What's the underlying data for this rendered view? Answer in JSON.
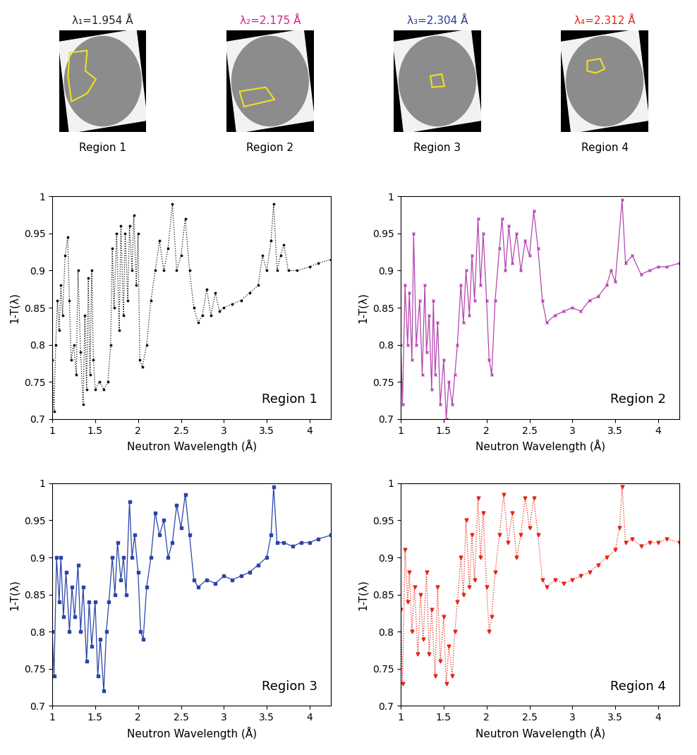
{
  "images": [
    {
      "title": "λ₁=1.954 Å",
      "color": "#222222",
      "caption": "Region 1"
    },
    {
      "title": "λ₂=2.175 Å",
      "color": "#d0208a",
      "caption": "Region 2"
    },
    {
      "title": "λ₃=2.304 Å",
      "color": "#2a3a9a",
      "caption": "Region 3"
    },
    {
      "title": "λ₄=2.312 Å",
      "color": "#e02a1a",
      "caption": "Region 4"
    }
  ],
  "chart_data": [
    {
      "type": "line",
      "x_label": "Neutron Wavelength (Å)",
      "y_label": "1-T(λ)",
      "annotations": [
        "Region 1"
      ],
      "xlim": [
        1,
        4.25
      ],
      "xticks": [
        1,
        1.5,
        2,
        2.5,
        3,
        3.5,
        4
      ],
      "ylim": [
        0.7,
        1
      ],
      "yticks": [
        0.7,
        0.75,
        0.8,
        0.85,
        0.9,
        0.95,
        1
      ],
      "series": [
        {
          "color": "#111111",
          "marker": "point",
          "line_style": "dotted",
          "x": [
            1.0,
            1.02,
            1.04,
            1.06,
            1.08,
            1.1,
            1.12,
            1.15,
            1.18,
            1.2,
            1.22,
            1.25,
            1.28,
            1.3,
            1.33,
            1.36,
            1.38,
            1.4,
            1.42,
            1.44,
            1.46,
            1.48,
            1.5,
            1.55,
            1.6,
            1.65,
            1.68,
            1.7,
            1.72,
            1.75,
            1.78,
            1.8,
            1.83,
            1.85,
            1.88,
            1.9,
            1.93,
            1.95,
            1.98,
            2.0,
            2.02,
            2.05,
            2.1,
            2.15,
            2.2,
            2.25,
            2.3,
            2.35,
            2.4,
            2.45,
            2.5,
            2.55,
            2.6,
            2.65,
            2.7,
            2.75,
            2.8,
            2.85,
            2.9,
            2.95,
            3.0,
            3.1,
            3.2,
            3.3,
            3.4,
            3.45,
            3.5,
            3.55,
            3.58,
            3.62,
            3.66,
            3.7,
            3.75,
            3.85,
            4.0,
            4.1,
            4.25
          ],
          "values": [
            0.78,
            0.71,
            0.8,
            0.86,
            0.82,
            0.88,
            0.84,
            0.92,
            0.945,
            0.86,
            0.78,
            0.8,
            0.76,
            0.9,
            0.79,
            0.72,
            0.84,
            0.74,
            0.89,
            0.76,
            0.9,
            0.78,
            0.74,
            0.75,
            0.74,
            0.75,
            0.8,
            0.93,
            0.85,
            0.95,
            0.82,
            0.96,
            0.84,
            0.95,
            0.86,
            0.96,
            0.9,
            0.975,
            0.88,
            0.95,
            0.78,
            0.77,
            0.8,
            0.86,
            0.9,
            0.94,
            0.9,
            0.93,
            0.99,
            0.9,
            0.92,
            0.97,
            0.9,
            0.85,
            0.83,
            0.84,
            0.875,
            0.84,
            0.87,
            0.845,
            0.85,
            0.855,
            0.86,
            0.87,
            0.88,
            0.92,
            0.9,
            0.94,
            0.99,
            0.9,
            0.92,
            0.935,
            0.9,
            0.9,
            0.905,
            0.91,
            0.915
          ]
        }
      ]
    },
    {
      "type": "line",
      "x_label": "Neutron Wavelength (Å)",
      "y_label": "1-T(λ)",
      "annotations": [
        "Region 2"
      ],
      "xlim": [
        1,
        4.25
      ],
      "xticks": [
        1,
        1.5,
        2,
        2.5,
        3,
        3.5,
        4
      ],
      "ylim": [
        0.7,
        1
      ],
      "yticks": [
        0.7,
        0.75,
        0.8,
        0.85,
        0.9,
        0.95,
        1
      ],
      "series": [
        {
          "color": "#b545b0",
          "marker": "x",
          "line_style": "solid",
          "x": [
            1.0,
            1.02,
            1.05,
            1.08,
            1.1,
            1.13,
            1.15,
            1.18,
            1.22,
            1.25,
            1.28,
            1.3,
            1.33,
            1.36,
            1.38,
            1.4,
            1.43,
            1.46,
            1.5,
            1.53,
            1.56,
            1.6,
            1.63,
            1.66,
            1.7,
            1.73,
            1.76,
            1.8,
            1.83,
            1.86,
            1.9,
            1.93,
            1.96,
            2.0,
            2.03,
            2.06,
            2.1,
            2.15,
            2.18,
            2.22,
            2.26,
            2.3,
            2.35,
            2.4,
            2.45,
            2.5,
            2.55,
            2.6,
            2.65,
            2.7,
            2.8,
            2.9,
            3.0,
            3.1,
            3.2,
            3.3,
            3.4,
            3.45,
            3.5,
            3.58,
            3.62,
            3.7,
            3.8,
            3.9,
            4.0,
            4.1,
            4.25
          ],
          "values": [
            0.8,
            0.72,
            0.88,
            0.8,
            0.87,
            0.78,
            0.95,
            0.8,
            0.86,
            0.76,
            0.88,
            0.79,
            0.84,
            0.74,
            0.86,
            0.76,
            0.83,
            0.72,
            0.78,
            0.7,
            0.75,
            0.72,
            0.76,
            0.8,
            0.88,
            0.83,
            0.9,
            0.84,
            0.92,
            0.86,
            0.97,
            0.88,
            0.95,
            0.86,
            0.78,
            0.76,
            0.86,
            0.93,
            0.97,
            0.9,
            0.96,
            0.91,
            0.95,
            0.9,
            0.94,
            0.92,
            0.98,
            0.93,
            0.86,
            0.83,
            0.84,
            0.845,
            0.85,
            0.845,
            0.86,
            0.865,
            0.88,
            0.9,
            0.885,
            0.995,
            0.91,
            0.92,
            0.895,
            0.9,
            0.905,
            0.905,
            0.91
          ]
        }
      ]
    },
    {
      "type": "line",
      "x_label": "Neutron Wavelength (Å)",
      "y_label": "1-T(λ)",
      "annotations": [
        "Region 3"
      ],
      "xlim": [
        1,
        4.25
      ],
      "xticks": [
        1,
        1.5,
        2,
        2.5,
        3,
        3.5,
        4
      ],
      "ylim": [
        0.7,
        1
      ],
      "yticks": [
        0.7,
        0.75,
        0.8,
        0.85,
        0.9,
        0.95,
        1
      ],
      "series": [
        {
          "color": "#2a44a8",
          "marker": "square",
          "line_style": "solid",
          "x": [
            1.0,
            1.02,
            1.05,
            1.08,
            1.1,
            1.13,
            1.16,
            1.2,
            1.23,
            1.26,
            1.3,
            1.33,
            1.36,
            1.4,
            1.43,
            1.46,
            1.5,
            1.53,
            1.56,
            1.6,
            1.63,
            1.66,
            1.7,
            1.73,
            1.76,
            1.8,
            1.83,
            1.86,
            1.9,
            1.93,
            1.96,
            2.0,
            2.03,
            2.06,
            2.1,
            2.15,
            2.2,
            2.25,
            2.3,
            2.35,
            2.4,
            2.45,
            2.5,
            2.55,
            2.6,
            2.65,
            2.7,
            2.8,
            2.9,
            3.0,
            3.1,
            3.2,
            3.3,
            3.4,
            3.5,
            3.55,
            3.58,
            3.62,
            3.7,
            3.8,
            3.9,
            4.0,
            4.1,
            4.25
          ],
          "values": [
            0.8,
            0.74,
            0.9,
            0.84,
            0.9,
            0.82,
            0.88,
            0.8,
            0.86,
            0.82,
            0.89,
            0.8,
            0.86,
            0.76,
            0.84,
            0.78,
            0.84,
            0.74,
            0.79,
            0.72,
            0.8,
            0.84,
            0.9,
            0.85,
            0.92,
            0.87,
            0.9,
            0.85,
            0.975,
            0.9,
            0.93,
            0.88,
            0.8,
            0.79,
            0.86,
            0.9,
            0.96,
            0.93,
            0.95,
            0.9,
            0.92,
            0.97,
            0.94,
            0.985,
            0.93,
            0.87,
            0.86,
            0.87,
            0.865,
            0.875,
            0.87,
            0.875,
            0.88,
            0.89,
            0.9,
            0.93,
            0.995,
            0.92,
            0.92,
            0.915,
            0.92,
            0.92,
            0.925,
            0.93
          ]
        }
      ]
    },
    {
      "type": "line",
      "x_label": "Neutron Wavelength (Å)",
      "y_label": "1-T(λ)",
      "annotations": [
        "Region 4"
      ],
      "xlim": [
        1,
        4.25
      ],
      "xticks": [
        1,
        1.5,
        2,
        2.5,
        3,
        3.5,
        4
      ],
      "ylim": [
        0.7,
        1
      ],
      "yticks": [
        0.7,
        0.75,
        0.8,
        0.85,
        0.9,
        0.95,
        1
      ],
      "series": [
        {
          "color": "#e52515",
          "marker": "triangle_down",
          "line_style": "dotted",
          "x": [
            1.0,
            1.02,
            1.05,
            1.08,
            1.1,
            1.13,
            1.16,
            1.2,
            1.23,
            1.26,
            1.3,
            1.33,
            1.36,
            1.4,
            1.43,
            1.46,
            1.5,
            1.53,
            1.56,
            1.6,
            1.63,
            1.66,
            1.7,
            1.73,
            1.76,
            1.8,
            1.83,
            1.86,
            1.9,
            1.93,
            1.96,
            2.0,
            2.03,
            2.06,
            2.1,
            2.15,
            2.2,
            2.25,
            2.3,
            2.35,
            2.4,
            2.45,
            2.5,
            2.55,
            2.6,
            2.65,
            2.7,
            2.8,
            2.9,
            3.0,
            3.1,
            3.2,
            3.3,
            3.4,
            3.5,
            3.55,
            3.58,
            3.62,
            3.7,
            3.8,
            3.9,
            4.0,
            4.1,
            4.25
          ],
          "values": [
            0.83,
            0.73,
            0.91,
            0.84,
            0.88,
            0.8,
            0.86,
            0.77,
            0.85,
            0.79,
            0.88,
            0.77,
            0.83,
            0.74,
            0.86,
            0.76,
            0.82,
            0.73,
            0.78,
            0.74,
            0.8,
            0.84,
            0.9,
            0.85,
            0.95,
            0.86,
            0.93,
            0.87,
            0.98,
            0.9,
            0.96,
            0.86,
            0.8,
            0.82,
            0.88,
            0.93,
            0.985,
            0.92,
            0.96,
            0.9,
            0.93,
            0.98,
            0.94,
            0.98,
            0.93,
            0.87,
            0.86,
            0.87,
            0.865,
            0.87,
            0.875,
            0.88,
            0.89,
            0.9,
            0.91,
            0.94,
            0.995,
            0.92,
            0.925,
            0.915,
            0.92,
            0.92,
            0.925,
            0.92
          ]
        }
      ]
    }
  ]
}
